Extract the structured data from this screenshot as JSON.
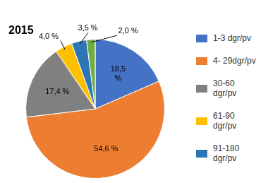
{
  "chart_data": {
    "type": "pie",
    "title": "2015",
    "categories": [
      "1-3 dgr/pv",
      "4- 29dgr/pv",
      "30-60\ndgr/pv",
      "61-90\ndgr/pv",
      "91-180\ndgr/pv",
      null
    ],
    "values": [
      18.5,
      54.6,
      17.4,
      4.0,
      3.5,
      2.0
    ],
    "value_labels": [
      "18,5\n%",
      "54,6 %",
      "17,4 %",
      "4,0 %",
      "3,5 %",
      "2,0 %"
    ],
    "colors": [
      "#4472C4",
      "#ED7D31",
      "#808080",
      "#FFC000",
      "#2E75B6",
      "#70AD47"
    ],
    "legend": "right",
    "data_labels": true
  }
}
